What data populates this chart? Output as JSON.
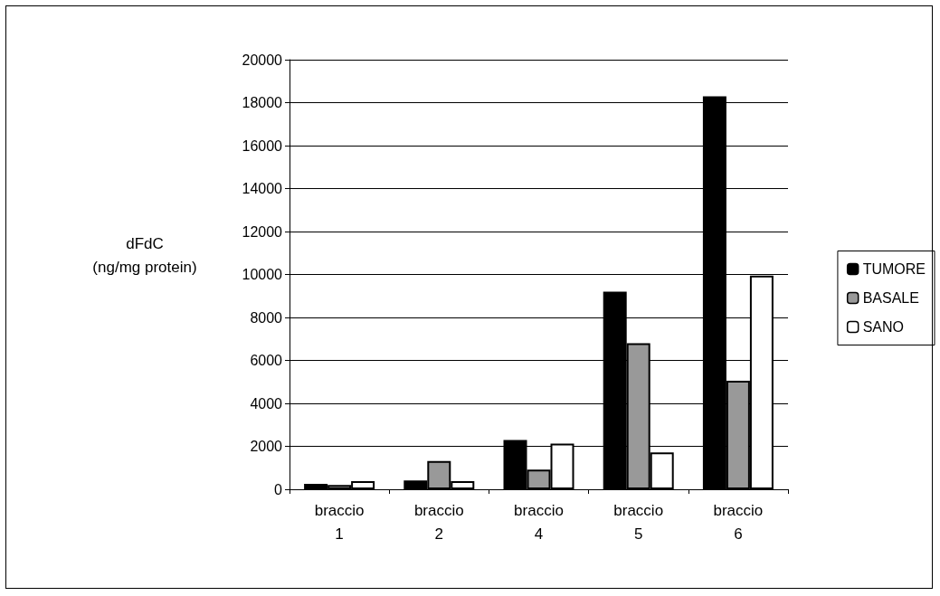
{
  "chart_data": {
    "type": "bar",
    "categories": [
      "braccio\n1",
      "braccio\n2",
      "braccio\n4",
      "braccio\n5",
      "braccio\n6"
    ],
    "ylabel": "dFdC\n(ng/mg protein)",
    "series": [
      {
        "name": "TUMORE",
        "color": "#000000",
        "values": [
          250,
          410,
          2290,
          9200,
          18300
        ]
      },
      {
        "name": "BASALE",
        "color": "#999999",
        "values": [
          200,
          1320,
          920,
          6800,
          5050
        ]
      },
      {
        "name": "SANO",
        "color": "#ffffff",
        "values": [
          380,
          380,
          2130,
          1720,
          9950
        ]
      }
    ],
    "ylim": [
      0,
      20000
    ],
    "yticks": [
      0,
      2000,
      4000,
      6000,
      8000,
      10000,
      12000,
      14000,
      16000,
      18000,
      20000
    ],
    "grid": "y",
    "legend": "right"
  }
}
